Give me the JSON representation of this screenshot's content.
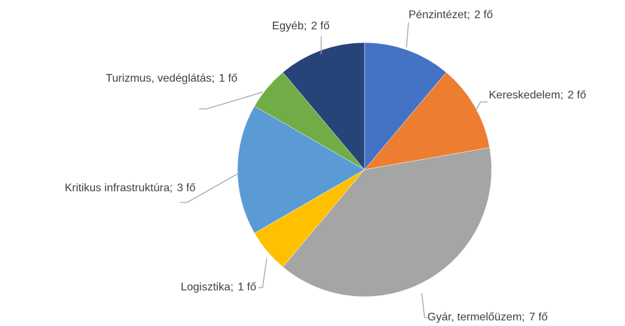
{
  "chart_data": {
    "type": "pie",
    "categories": [
      "Pénzintézet",
      "Kereskedelem",
      "Gyár, termelőüzem",
      "Logisztika",
      "Kritikus infrastruktúra",
      "Turizmus, vedéglátás",
      "Egyéb"
    ],
    "values": [
      2,
      2,
      7,
      1,
      3,
      1,
      2
    ],
    "value_labels": [
      "2 fő",
      "2 fő",
      "7 fő",
      "1 fő",
      "3 fő",
      "1 fő",
      "2 fő"
    ],
    "label_separator": ";",
    "colors": [
      "#4472c4",
      "#ed7d31",
      "#a5a5a5",
      "#ffc000",
      "#5b9bd5",
      "#70ad47",
      "#264478"
    ]
  }
}
